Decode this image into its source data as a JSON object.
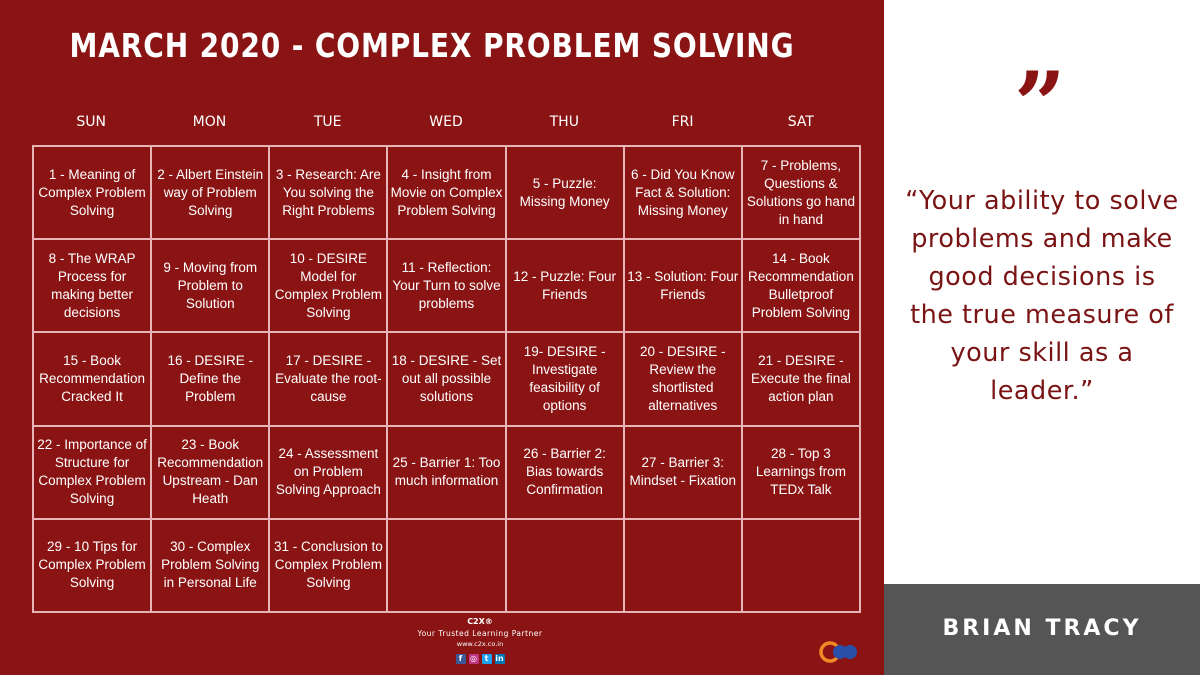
{
  "title": "MARCH 2020 - COMPLEX PROBLEM SOLVING",
  "days": [
    "SUN",
    "MON",
    "TUE",
    "WED",
    "THU",
    "FRI",
    "SAT"
  ],
  "cells": [
    "1 - Meaning of Complex Problem Solving",
    "2 - Albert Einstein way of Problem Solving",
    "3 - Research: Are You solving the Right Problems",
    "4 - Insight from Movie on Complex Problem Solving",
    "5 - Puzzle: Missing Money",
    "6 - Did You Know Fact & Solution: Missing Money",
    "7 - Problems, Questions & Solutions go hand in hand",
    "8 - The WRAP Process for making better decisions",
    "9 - Moving from Problem to Solution",
    "10 - DESIRE Model for Complex Problem Solving",
    "11 - Reflection: Your Turn to solve problems",
    "12 - Puzzle: Four Friends",
    "13 - Solution: Four Friends",
    "14 - Book Recommendation Bulletproof Problem Solving",
    "15 - Book Recommendation Cracked It",
    "16 -  DESIRE - Define the Problem",
    "17 - DESIRE - Evaluate the root-cause",
    "18 - DESIRE - Set out all possible solutions",
    "19- DESIRE - Investigate feasibility of options",
    "20 - DESIRE - Review the shortlisted alternatives",
    "21 - DESIRE - Execute the final action plan",
    "22 - Importance of Structure for Complex Problem Solving",
    "23 - Book Recommendation Upstream - Dan Heath",
    "24 - Assessment on Problem Solving Approach",
    "25 - Barrier 1: Too much information",
    "26 - Barrier 2: Bias towards Confirmation",
    "27 - Barrier 3: Mindset - Fixation",
    "28 - Top 3 Learnings from TEDx Talk",
    "29 - 10 Tips for Complex Problem Solving",
    "30 - Complex Problem Solving in Personal Life",
    "31 - Conclusion to Complex Problem Solving",
    "",
    "",
    "",
    ""
  ],
  "footer": {
    "brand": "C2X®",
    "tagline": "Your Trusted Learning Partner",
    "url": "www.c2x.co.in",
    "social_icons": [
      "facebook-icon",
      "instagram-icon",
      "twitter-icon",
      "linkedin-icon"
    ]
  },
  "quote": {
    "mark": "”",
    "text": "“Your ability to solve problems and make good decisions is the true measure of your skill as a leader.”",
    "author": "BRIAN TRACY"
  },
  "colors": {
    "background": "#8a1414",
    "border": "#e6b5b5",
    "quote": "#7a1414",
    "author_bar": "#555555"
  }
}
